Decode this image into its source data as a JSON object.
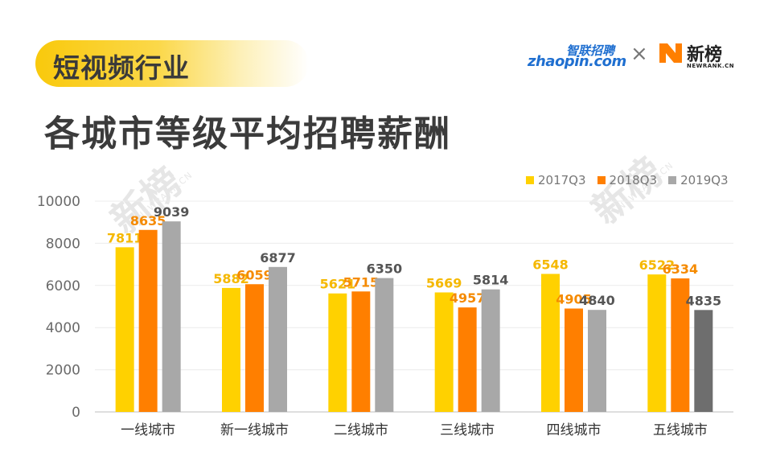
{
  "header": {
    "tag": "短视频行业",
    "title": "各城市等级平均招聘薪酬",
    "partner_logo_cn": "智联招聘",
    "partner_logo_en": "zhaopin.com",
    "separator": "×",
    "brand_logo_cn": "新榜",
    "brand_logo_en": "NEWRANK.CN"
  },
  "watermark": {
    "text": "新榜",
    "sub": "NEWRANK.CN"
  },
  "colors": {
    "accent": "#F9C90C",
    "s2017": "#FFD100",
    "s2018": "#FF7F00",
    "s2019": "#A8A8A8",
    "s2019_last": "#6E6E6E"
  },
  "chart_data": {
    "type": "bar",
    "categories": [
      "一线城市",
      "新一线城市",
      "二线城市",
      "三线城市",
      "四线城市",
      "五线城市"
    ],
    "series": [
      {
        "name": "2017Q3",
        "color": "#FFD100",
        "label_color": "#F5B800",
        "values": [
          7811,
          5882,
          5621,
          5669,
          6548,
          6522
        ]
      },
      {
        "name": "2018Q3",
        "color": "#FF7F00",
        "label_color": "#F58A00",
        "values": [
          8635,
          6059,
          5715,
          4957,
          4905,
          6334
        ]
      },
      {
        "name": "2019Q3",
        "color": "#A8A8A8",
        "label_color": "#555555",
        "values": [
          9039,
          6877,
          6350,
          5814,
          4840,
          4835
        ]
      }
    ],
    "yticks": [
      0,
      2000,
      4000,
      6000,
      8000,
      10000
    ],
    "ylim": [
      0,
      10000
    ],
    "legend": "top-right",
    "grid": true
  }
}
